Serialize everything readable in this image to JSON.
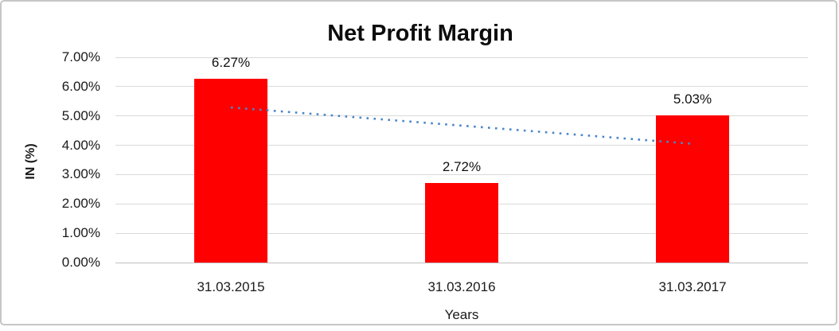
{
  "chart_data": {
    "type": "bar",
    "title": "Net Profit Margin",
    "xlabel": "Years",
    "ylabel": "IN (%)",
    "categories": [
      "31.03.2015",
      "31.03.2016",
      "31.03.2017"
    ],
    "values": [
      6.27,
      2.72,
      5.03
    ],
    "value_labels": [
      "6.27%",
      "2.72%",
      "5.03%"
    ],
    "ylim": [
      0,
      7
    ],
    "ytick_step": 1,
    "ytick_labels": [
      "0.00%",
      "1.00%",
      "2.00%",
      "3.00%",
      "4.00%",
      "5.00%",
      "6.00%",
      "7.00%"
    ],
    "grid": true,
    "legend": "none",
    "bar_color": "#ff0000",
    "gridline_color": "#d9d9d9",
    "trendline": {
      "type": "linear",
      "style": "dotted",
      "color": "#4a86c8",
      "start_value": 5.29,
      "end_value": 4.05
    }
  }
}
